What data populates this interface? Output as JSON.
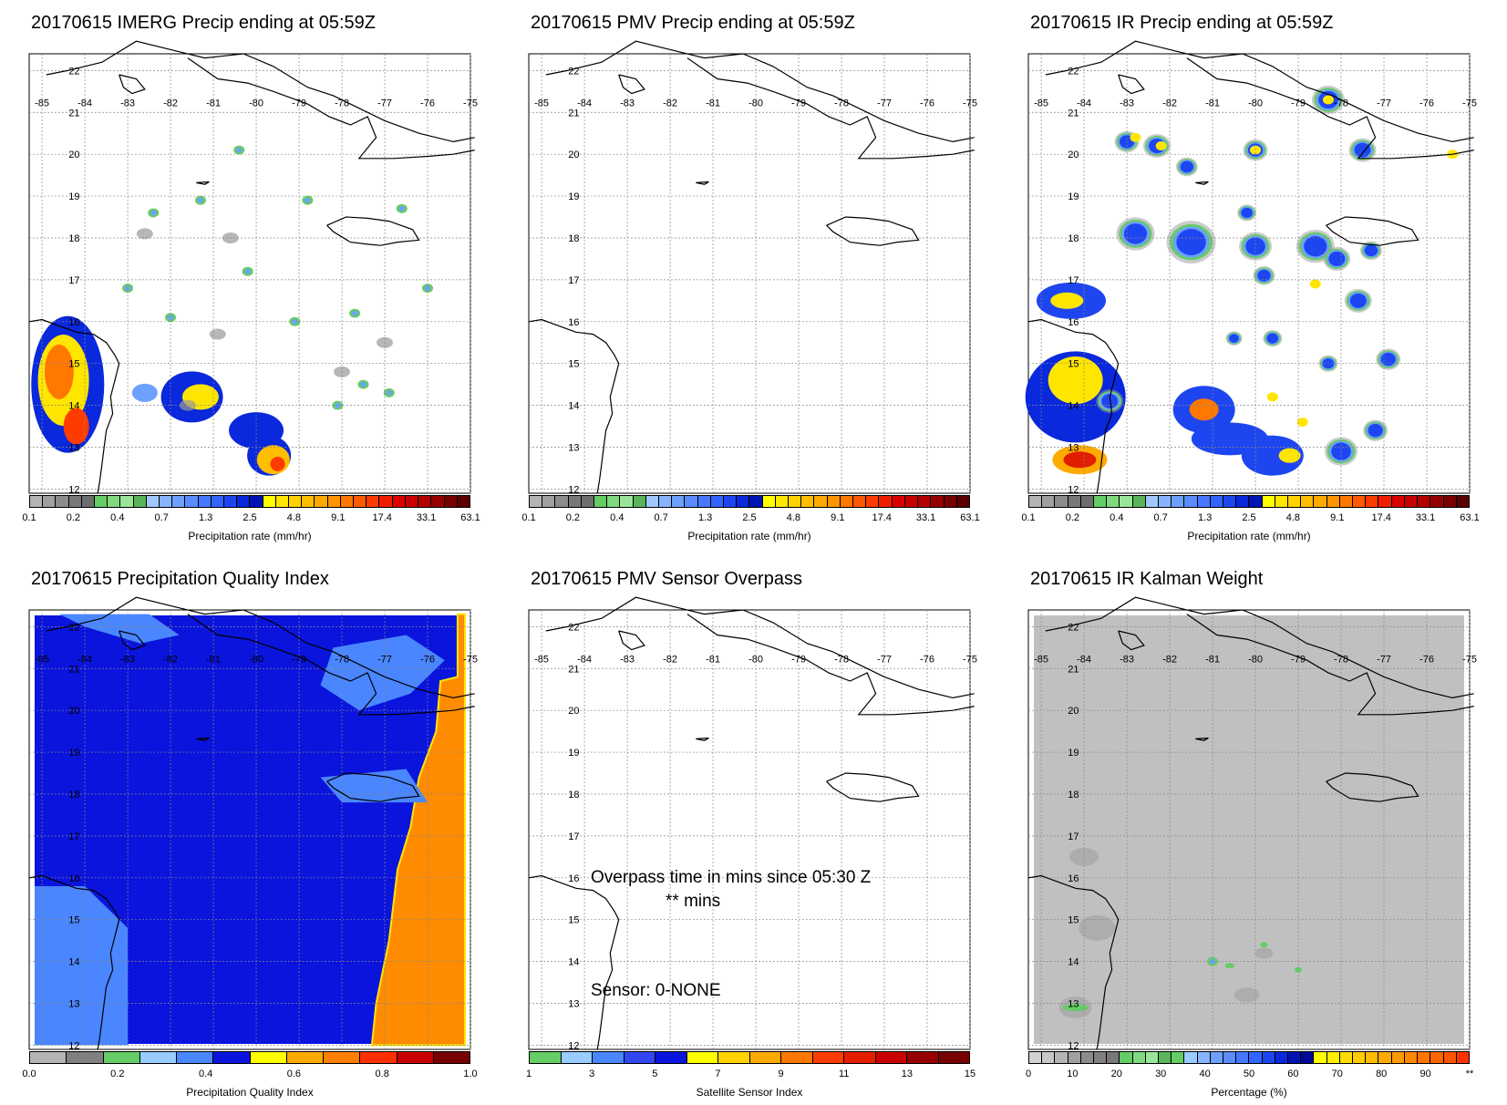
{
  "panels": [
    {
      "title": "20170615 IMERG Precip ending at 05:59Z",
      "kind": "imerg",
      "colorbar_label": "Precipitation rate (mm/hr)",
      "scale": "precip"
    },
    {
      "title": "20170615 PMV Precip ending at 05:59Z",
      "kind": "empty",
      "colorbar_label": "Precipitation rate (mm/hr)",
      "scale": "precip"
    },
    {
      "title": "20170615 IR Precip ending at 05:59Z",
      "kind": "ir",
      "colorbar_label": "Precipitation rate (mm/hr)",
      "scale": "precip"
    },
    {
      "title": "20170615 Precipitation Quality Index",
      "kind": "pqi",
      "colorbar_label": "Precipitation Quality Index",
      "scale": "pqi"
    },
    {
      "title": "20170615 PMV Sensor Overpass",
      "kind": "empty",
      "colorbar_label": "Satellite Sensor Index",
      "scale": "sensor"
    },
    {
      "title": "20170615 IR Kalman Weight",
      "kind": "kalman",
      "colorbar_label": "Percentage (%)",
      "scale": "pct"
    }
  ],
  "overpass": {
    "line1": "Overpass time in mins since 05:30 Z",
    "line2": "** mins",
    "sensor": "Sensor:   0-NONE"
  },
  "map": {
    "lon_labels": [
      "-85",
      "-84",
      "-83",
      "-82",
      "-81",
      "-80",
      "-79",
      "-78",
      "-77",
      "-76",
      "-75"
    ],
    "lat_labels": [
      "12",
      "13",
      "14",
      "15",
      "16",
      "17",
      "18",
      "19",
      "20",
      "21",
      "22"
    ]
  },
  "scales": {
    "precip": {
      "colors": [
        "#b4b4b4",
        "#a0a0a0",
        "#8c8c8c",
        "#787878",
        "#6e6e6e",
        "#66cc66",
        "#7fd97f",
        "#99e699",
        "#5ab45a",
        "#a0c8ff",
        "#87b4ff",
        "#6ea0ff",
        "#5a8cff",
        "#4678ff",
        "#3264ff",
        "#1e46f0",
        "#0a28dc",
        "#0014b4",
        "#ffff00",
        "#ffe600",
        "#ffd200",
        "#ffbe00",
        "#ffaa00",
        "#ff9600",
        "#ff7800",
        "#ff5a00",
        "#ff3c00",
        "#f01e00",
        "#dc0000",
        "#c80000",
        "#b40000",
        "#960000",
        "#780000",
        "#5a0000"
      ],
      "ticks": [
        "0.1",
        "0.2",
        "0.4",
        "0.7",
        "1.3",
        "2.5",
        "4.8",
        "9.1",
        "17.4",
        "33.1",
        "63.1"
      ]
    },
    "pqi": {
      "colors": [
        "#b4b4b4",
        "#808080",
        "#66cc66",
        "#99ccff",
        "#4a86ff",
        "#0a14dc",
        "#ffff00",
        "#ffaa00",
        "#ff8000",
        "#ff3000",
        "#c80000",
        "#780000"
      ],
      "ticks": [
        "0.0",
        "0.2",
        "0.4",
        "0.6",
        "0.8",
        "1.0"
      ]
    },
    "sensor": {
      "colors": [
        "#66cc66",
        "#99ccff",
        "#4a86ff",
        "#3246f0",
        "#0a14dc",
        "#ffff00",
        "#ffd200",
        "#ffaa00",
        "#ff7800",
        "#ff3c00",
        "#e61e00",
        "#c80000",
        "#960000",
        "#780000"
      ],
      "ticks": [
        "1",
        "3",
        "5",
        "7",
        "9",
        "11",
        "13",
        "15"
      ]
    },
    "pct": {
      "colors": [
        "#d2d2d2",
        "#c8c8c8",
        "#b4b4b4",
        "#a0a0a0",
        "#8c8c8c",
        "#808080",
        "#787878",
        "#66cc66",
        "#7fd97f",
        "#99e699",
        "#5ab45a",
        "#66cc66",
        "#99ccff",
        "#87b4ff",
        "#6ea0ff",
        "#5a8cff",
        "#4678ff",
        "#3264ff",
        "#1e46f0",
        "#0a28dc",
        "#0014b4",
        "#000a96",
        "#ffff00",
        "#ffee00",
        "#ffdd00",
        "#ffcc00",
        "#ffbb00",
        "#ffaa00",
        "#ff9900",
        "#ff8800",
        "#ff7700",
        "#ff6600",
        "#ff5500",
        "#ff3300"
      ],
      "ticks": [
        "0",
        "10",
        "20",
        "30",
        "40",
        "50",
        "60",
        "70",
        "80",
        "90",
        "**"
      ]
    }
  },
  "colors": {
    "pqi_blue": "#0a14dc",
    "pqi_light_blue": "#4a86ff",
    "pqi_orange": "#ff8c00",
    "kalman_gray": "#c0c0c0",
    "ir_cell_blue": "#1e46f0",
    "ir_cell_yellow": "#ffe600",
    "ir_cell_red": "#e01e00"
  }
}
